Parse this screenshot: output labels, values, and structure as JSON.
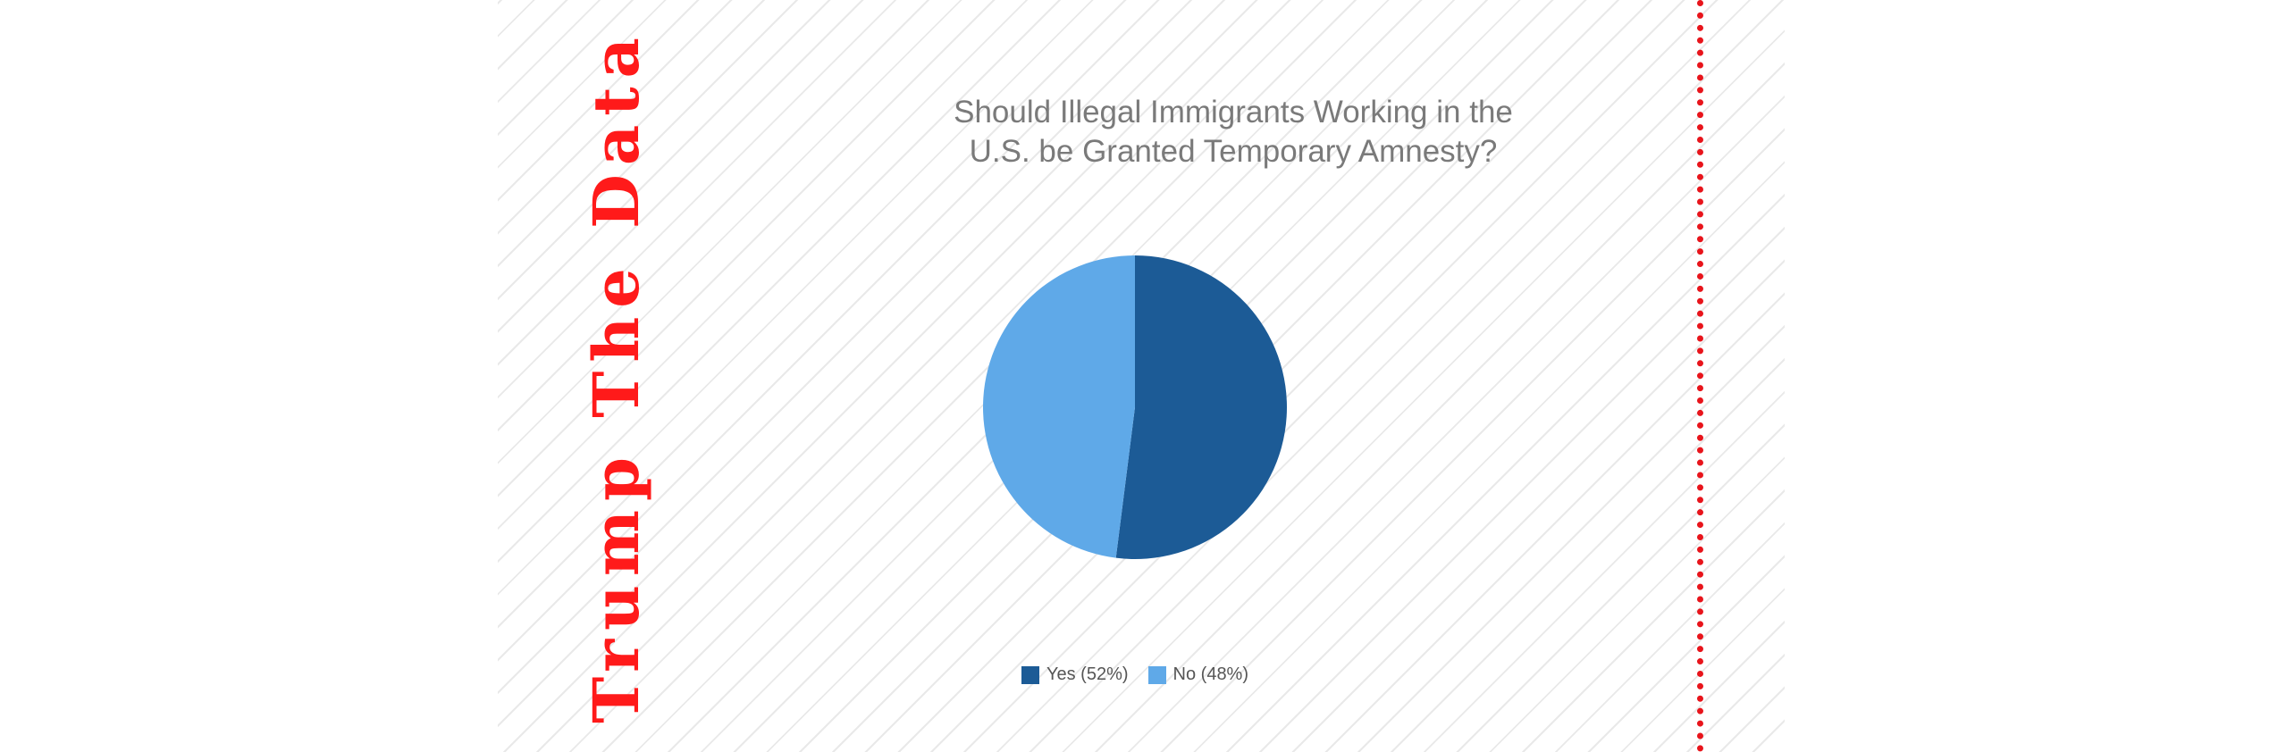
{
  "brand": {
    "text": "Trump The Data"
  },
  "chart_data": {
    "type": "pie",
    "title": "Should Illegal Immigrants Working in the\nU.S. be Granted Temporary Amnesty?",
    "slices": [
      {
        "label": "Yes (52%)",
        "value": 52,
        "color": "#1c5b96"
      },
      {
        "label": "No (48%)",
        "value": 48,
        "color": "#5fa9e8"
      }
    ],
    "start_angle_degrees": 0,
    "direction": "clockwise",
    "legend_position": "bottom"
  },
  "colors": {
    "brand": "#ff1a1a",
    "divider": "#e8141b",
    "stripe": "#e9e9e9",
    "title": "#7a7a7a"
  }
}
